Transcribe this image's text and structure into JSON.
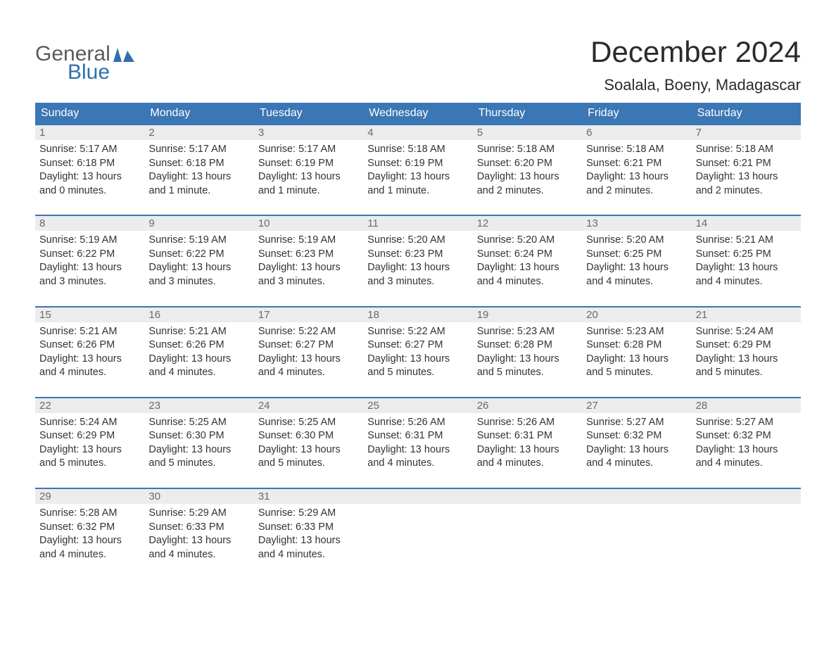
{
  "brand": {
    "general": "General",
    "blue": "Blue"
  },
  "title": "December 2024",
  "location": "Soalala, Boeny, Madagascar",
  "colors": {
    "header_bg": "#3b76b5",
    "header_text": "#ffffff",
    "daynum_bg": "#ececec",
    "daynum_text": "#6a6a6a",
    "body_text": "#333333",
    "rule": "#3b76b5",
    "logo_gray": "#5a5a5a",
    "logo_blue": "#2f6fb0"
  },
  "fonts": {
    "title_pt": 42,
    "location_pt": 22,
    "dow_pt": 16,
    "body_pt": 14.5
  },
  "days_of_week": [
    "Sunday",
    "Monday",
    "Tuesday",
    "Wednesday",
    "Thursday",
    "Friday",
    "Saturday"
  ],
  "weeks": [
    [
      {
        "n": "1",
        "sunrise": "Sunrise: 5:17 AM",
        "sunset": "Sunset: 6:18 PM",
        "d1": "Daylight: 13 hours",
        "d2": "and 0 minutes."
      },
      {
        "n": "2",
        "sunrise": "Sunrise: 5:17 AM",
        "sunset": "Sunset: 6:18 PM",
        "d1": "Daylight: 13 hours",
        "d2": "and 1 minute."
      },
      {
        "n": "3",
        "sunrise": "Sunrise: 5:17 AM",
        "sunset": "Sunset: 6:19 PM",
        "d1": "Daylight: 13 hours",
        "d2": "and 1 minute."
      },
      {
        "n": "4",
        "sunrise": "Sunrise: 5:18 AM",
        "sunset": "Sunset: 6:19 PM",
        "d1": "Daylight: 13 hours",
        "d2": "and 1 minute."
      },
      {
        "n": "5",
        "sunrise": "Sunrise: 5:18 AM",
        "sunset": "Sunset: 6:20 PM",
        "d1": "Daylight: 13 hours",
        "d2": "and 2 minutes."
      },
      {
        "n": "6",
        "sunrise": "Sunrise: 5:18 AM",
        "sunset": "Sunset: 6:21 PM",
        "d1": "Daylight: 13 hours",
        "d2": "and 2 minutes."
      },
      {
        "n": "7",
        "sunrise": "Sunrise: 5:18 AM",
        "sunset": "Sunset: 6:21 PM",
        "d1": "Daylight: 13 hours",
        "d2": "and 2 minutes."
      }
    ],
    [
      {
        "n": "8",
        "sunrise": "Sunrise: 5:19 AM",
        "sunset": "Sunset: 6:22 PM",
        "d1": "Daylight: 13 hours",
        "d2": "and 3 minutes."
      },
      {
        "n": "9",
        "sunrise": "Sunrise: 5:19 AM",
        "sunset": "Sunset: 6:22 PM",
        "d1": "Daylight: 13 hours",
        "d2": "and 3 minutes."
      },
      {
        "n": "10",
        "sunrise": "Sunrise: 5:19 AM",
        "sunset": "Sunset: 6:23 PM",
        "d1": "Daylight: 13 hours",
        "d2": "and 3 minutes."
      },
      {
        "n": "11",
        "sunrise": "Sunrise: 5:20 AM",
        "sunset": "Sunset: 6:23 PM",
        "d1": "Daylight: 13 hours",
        "d2": "and 3 minutes."
      },
      {
        "n": "12",
        "sunrise": "Sunrise: 5:20 AM",
        "sunset": "Sunset: 6:24 PM",
        "d1": "Daylight: 13 hours",
        "d2": "and 4 minutes."
      },
      {
        "n": "13",
        "sunrise": "Sunrise: 5:20 AM",
        "sunset": "Sunset: 6:25 PM",
        "d1": "Daylight: 13 hours",
        "d2": "and 4 minutes."
      },
      {
        "n": "14",
        "sunrise": "Sunrise: 5:21 AM",
        "sunset": "Sunset: 6:25 PM",
        "d1": "Daylight: 13 hours",
        "d2": "and 4 minutes."
      }
    ],
    [
      {
        "n": "15",
        "sunrise": "Sunrise: 5:21 AM",
        "sunset": "Sunset: 6:26 PM",
        "d1": "Daylight: 13 hours",
        "d2": "and 4 minutes."
      },
      {
        "n": "16",
        "sunrise": "Sunrise: 5:21 AM",
        "sunset": "Sunset: 6:26 PM",
        "d1": "Daylight: 13 hours",
        "d2": "and 4 minutes."
      },
      {
        "n": "17",
        "sunrise": "Sunrise: 5:22 AM",
        "sunset": "Sunset: 6:27 PM",
        "d1": "Daylight: 13 hours",
        "d2": "and 4 minutes."
      },
      {
        "n": "18",
        "sunrise": "Sunrise: 5:22 AM",
        "sunset": "Sunset: 6:27 PM",
        "d1": "Daylight: 13 hours",
        "d2": "and 5 minutes."
      },
      {
        "n": "19",
        "sunrise": "Sunrise: 5:23 AM",
        "sunset": "Sunset: 6:28 PM",
        "d1": "Daylight: 13 hours",
        "d2": "and 5 minutes."
      },
      {
        "n": "20",
        "sunrise": "Sunrise: 5:23 AM",
        "sunset": "Sunset: 6:28 PM",
        "d1": "Daylight: 13 hours",
        "d2": "and 5 minutes."
      },
      {
        "n": "21",
        "sunrise": "Sunrise: 5:24 AM",
        "sunset": "Sunset: 6:29 PM",
        "d1": "Daylight: 13 hours",
        "d2": "and 5 minutes."
      }
    ],
    [
      {
        "n": "22",
        "sunrise": "Sunrise: 5:24 AM",
        "sunset": "Sunset: 6:29 PM",
        "d1": "Daylight: 13 hours",
        "d2": "and 5 minutes."
      },
      {
        "n": "23",
        "sunrise": "Sunrise: 5:25 AM",
        "sunset": "Sunset: 6:30 PM",
        "d1": "Daylight: 13 hours",
        "d2": "and 5 minutes."
      },
      {
        "n": "24",
        "sunrise": "Sunrise: 5:25 AM",
        "sunset": "Sunset: 6:30 PM",
        "d1": "Daylight: 13 hours",
        "d2": "and 5 minutes."
      },
      {
        "n": "25",
        "sunrise": "Sunrise: 5:26 AM",
        "sunset": "Sunset: 6:31 PM",
        "d1": "Daylight: 13 hours",
        "d2": "and 4 minutes."
      },
      {
        "n": "26",
        "sunrise": "Sunrise: 5:26 AM",
        "sunset": "Sunset: 6:31 PM",
        "d1": "Daylight: 13 hours",
        "d2": "and 4 minutes."
      },
      {
        "n": "27",
        "sunrise": "Sunrise: 5:27 AM",
        "sunset": "Sunset: 6:32 PM",
        "d1": "Daylight: 13 hours",
        "d2": "and 4 minutes."
      },
      {
        "n": "28",
        "sunrise": "Sunrise: 5:27 AM",
        "sunset": "Sunset: 6:32 PM",
        "d1": "Daylight: 13 hours",
        "d2": "and 4 minutes."
      }
    ],
    [
      {
        "n": "29",
        "sunrise": "Sunrise: 5:28 AM",
        "sunset": "Sunset: 6:32 PM",
        "d1": "Daylight: 13 hours",
        "d2": "and 4 minutes."
      },
      {
        "n": "30",
        "sunrise": "Sunrise: 5:29 AM",
        "sunset": "Sunset: 6:33 PM",
        "d1": "Daylight: 13 hours",
        "d2": "and 4 minutes."
      },
      {
        "n": "31",
        "sunrise": "Sunrise: 5:29 AM",
        "sunset": "Sunset: 6:33 PM",
        "d1": "Daylight: 13 hours",
        "d2": "and 4 minutes."
      },
      null,
      null,
      null,
      null
    ]
  ]
}
